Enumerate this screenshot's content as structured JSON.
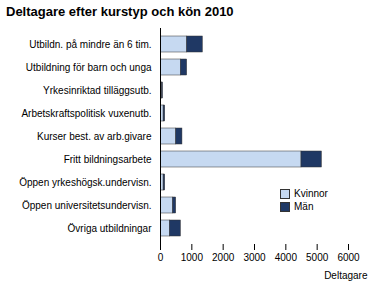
{
  "chart_data": {
    "type": "bar",
    "title": "Deltagare efter kurstyp och kön 2010",
    "orientation": "horizontal",
    "stacked": true,
    "grid": false,
    "legend": "lower right",
    "x_label": "Deltagare",
    "categories": [
      "Utbildn. på mindre än 6 tim.",
      "Utbildning för barn och unga",
      "Yrkesinriktad tilläggsutb.",
      "Arbetskraftspolitisk vuxenutb.",
      "Kurser best. av arb.givare",
      "Fritt bildningsarbete",
      "Öppen yrkeshögsk.undervisn.",
      "Öppen universitetsundervisn.",
      "Övriga utbildningar"
    ],
    "series": [
      {
        "name": "Kvinnor",
        "color": "#c6d9f1",
        "values": [
          850,
          650,
          50,
          100,
          500,
          4500,
          100,
          400,
          300
        ]
      },
      {
        "name": "Män",
        "color": "#1f3864",
        "values": [
          500,
          200,
          30,
          50,
          200,
          650,
          50,
          100,
          350
        ]
      }
    ],
    "xlim": [
      0,
      6000
    ],
    "xticks": [
      0,
      1000,
      2000,
      3000,
      4000,
      5000,
      6000
    ]
  }
}
